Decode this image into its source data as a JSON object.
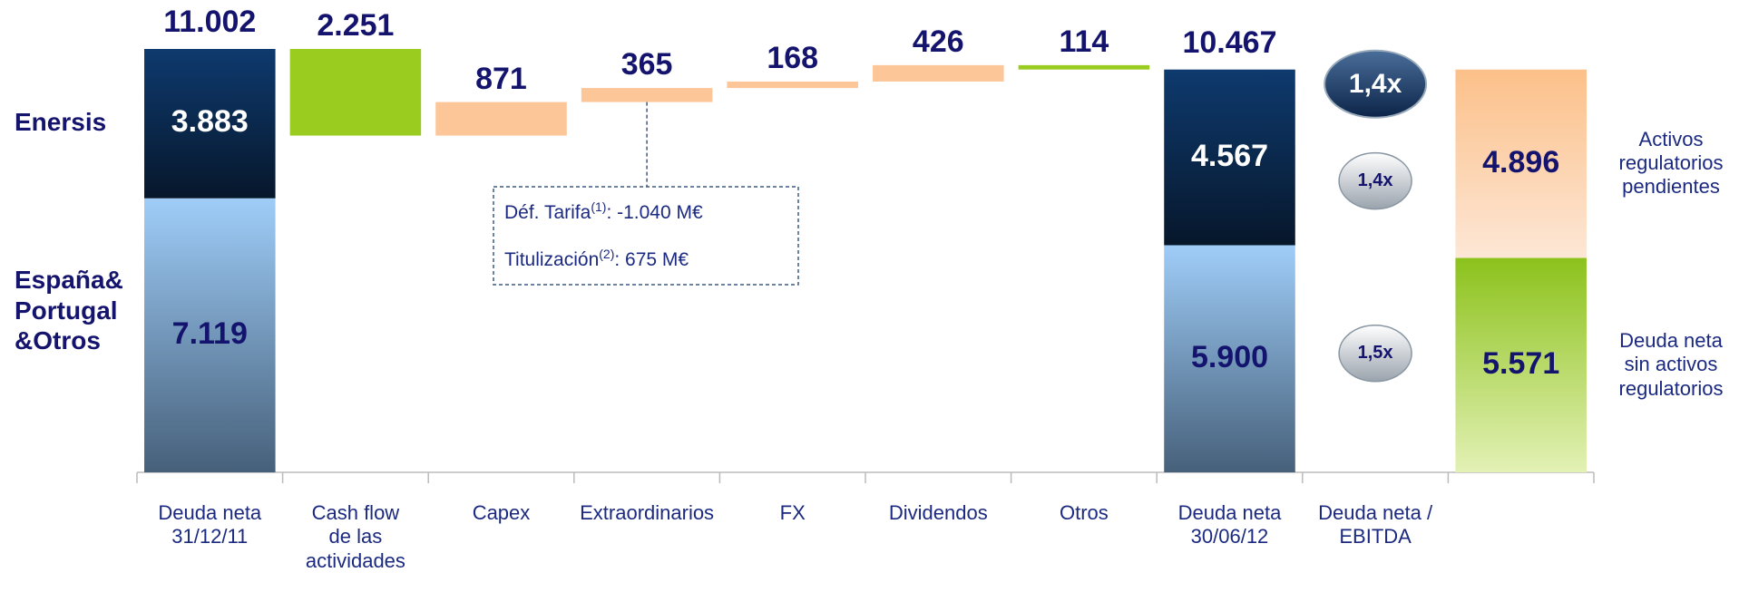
{
  "chart_data": {
    "type": "waterfall",
    "categories": [
      "Deuda neta\n31/12/11",
      "Cash flow\nde las\nactividades",
      "Capex",
      "Extraordinarios",
      "FX",
      "Dividendos",
      "Otros",
      "Deuda neta\n30/06/12",
      "Deuda neta /\nEBITDA",
      null
    ],
    "start": {
      "value": 11002,
      "value_label": "11.002",
      "segments": [
        {
          "name": "Enersis",
          "value": 3883,
          "value_label": "3.883",
          "colors": [
            "#0e3a6e",
            "#07172b"
          ],
          "label_color": "#ffffff"
        },
        {
          "name": "España&\nPortugal\n&Otros",
          "value": 7119,
          "value_label": "7.119",
          "colors": [
            "#9fcdf8",
            "#46607a"
          ],
          "label_color": "#14146e"
        }
      ]
    },
    "steps": {
      "values": [
        -2251,
        871,
        365,
        168,
        426,
        -114
      ],
      "value_labels": [
        "2.251",
        "871",
        "365",
        "168",
        "426",
        "114"
      ],
      "colors": [
        "#99cc1f",
        "#fcc699",
        "#fcc699",
        "#fcc699",
        "#fcc699",
        "#99cc1f"
      ]
    },
    "end": {
      "value": 10467,
      "value_label": "10.467",
      "segments": [
        {
          "name": "Enersis",
          "value": 4567,
          "value_label": "4.567",
          "colors": [
            "#0e3a6e",
            "#07172b"
          ],
          "label_color": "#ffffff"
        },
        {
          "name": "España&\nPortugal\n&Otros",
          "value": 5900,
          "value_label": "5.900",
          "colors": [
            "#9fcdf8",
            "#46607a"
          ],
          "label_color": "#14146e"
        }
      ]
    },
    "ratios": {
      "total": "1,4x",
      "segments": [
        "1,4x",
        "1,5x"
      ]
    },
    "breakdown": {
      "segments": [
        {
          "name": "Activos\nregulatorios\npendientes",
          "value": 4896,
          "value_label": "4.896",
          "colors": [
            "#fcc089",
            "#fde7d6"
          ]
        },
        {
          "name": "Deuda neta\nsin activos\nregulatorios",
          "value": 5571,
          "value_label": "5.571",
          "colors": [
            "#8cc21c",
            "#e3f1b5"
          ]
        }
      ]
    },
    "annotation": [
      {
        "label": "Déf. Tarifa",
        "note": "(1)",
        "text": ": -1.040 M€"
      },
      {
        "label": "Titulización",
        "note": "(2)",
        "text": ": 675 M€"
      }
    ]
  }
}
